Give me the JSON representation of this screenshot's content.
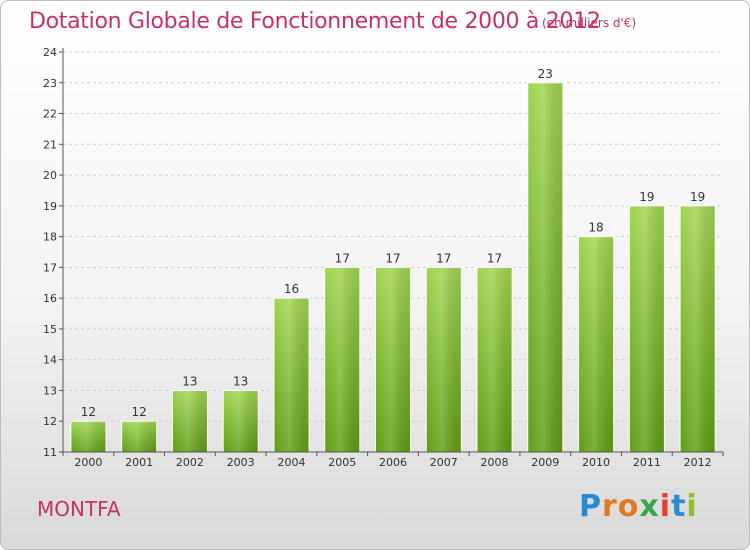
{
  "header": {
    "title": "Dotation Globale de Fonctionnement de 2000 à 2012",
    "subtitle": "(en milliers d'€)"
  },
  "footer": {
    "city": "MONTFA",
    "logo_letters": [
      "P",
      "r",
      "o",
      "x",
      "i",
      "t",
      "i"
    ]
  },
  "colors": {
    "title": "#c8306a",
    "bar_top": "#9ed44e",
    "bar_bottom": "#5e9c12",
    "axis": "#555555"
  },
  "chart_data": {
    "type": "bar",
    "title": "Dotation Globale de Fonctionnement de 2000 à 2012",
    "subtitle": "(en milliers d'€)",
    "xlabel": "",
    "ylabel": "",
    "categories": [
      "2000",
      "2001",
      "2002",
      "2003",
      "2004",
      "2005",
      "2006",
      "2007",
      "2008",
      "2009",
      "2010",
      "2011",
      "2012"
    ],
    "values": [
      12,
      12,
      13,
      13,
      16,
      17,
      17,
      17,
      17,
      23,
      18,
      19,
      19
    ],
    "ylim": [
      11,
      24
    ],
    "yticks": [
      11,
      12,
      13,
      14,
      15,
      16,
      17,
      18,
      19,
      20,
      21,
      22,
      23,
      24
    ],
    "grid": true,
    "legend": "none"
  }
}
